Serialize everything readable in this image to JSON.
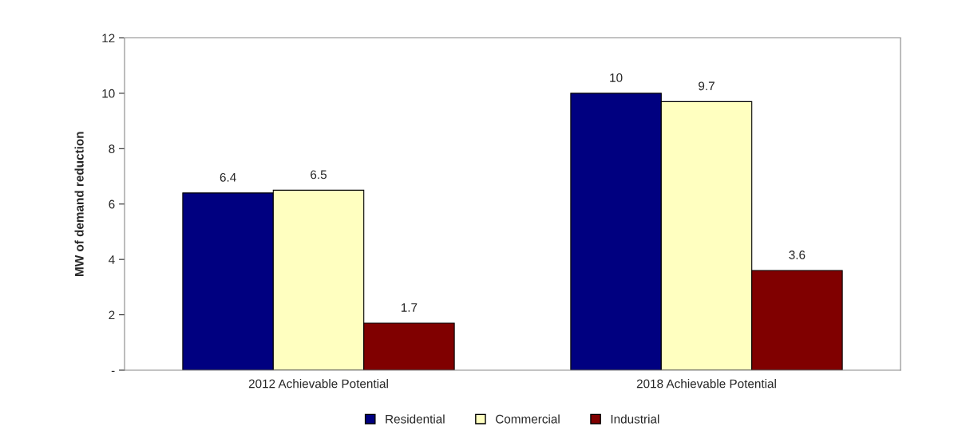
{
  "chart_data": {
    "type": "bar",
    "ylabel": "MW of demand reduction",
    "categories": [
      "2012 Achievable Potential",
      "2018 Achievable Potential"
    ],
    "series": [
      {
        "name": "Residential",
        "color": "#000080",
        "values": [
          6.4,
          10
        ]
      },
      {
        "name": "Commercial",
        "color": "#ffffc0",
        "values": [
          6.5,
          9.7
        ]
      },
      {
        "name": "Industrial",
        "color": "#800000",
        "values": [
          1.7,
          3.6
        ]
      }
    ],
    "ylim": [
      0,
      12
    ],
    "yticks": [
      {
        "value": 0,
        "label": "-"
      },
      2,
      4,
      6,
      8,
      10,
      12
    ],
    "data_labels": true,
    "grid": false,
    "legend": "bottom"
  }
}
